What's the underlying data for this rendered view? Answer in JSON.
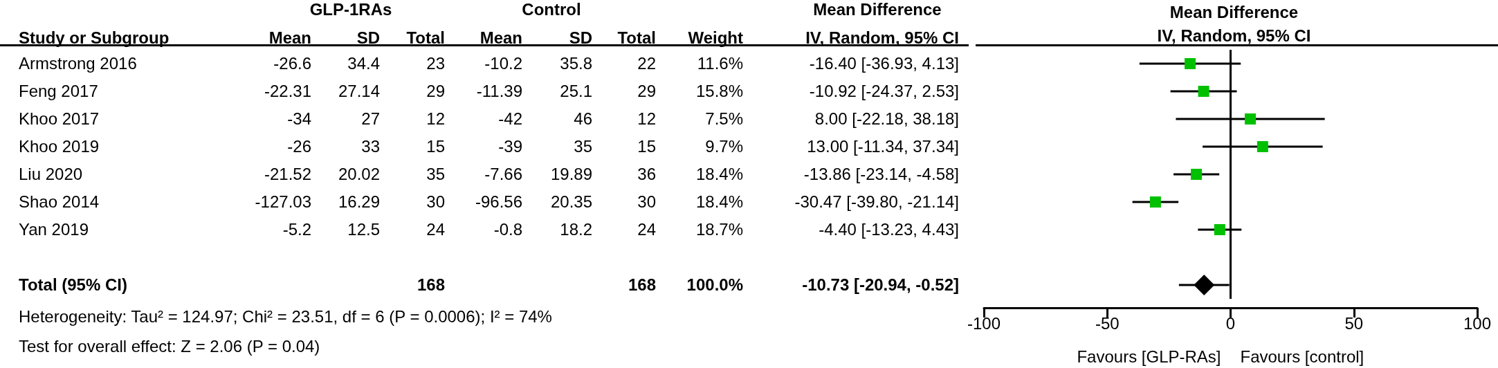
{
  "chart_data": [
    {
      "type": "other",
      "categories": [
        "Study or Subgroup",
        "Mean",
        "SD",
        "Total",
        "Mean",
        "SD",
        "Total",
        "Weight",
        "IV, Random, 95% CI"
      ],
      "cell_labels": [
        [
          "Armstrong 2016",
          "-26.6",
          "34.4",
          "23",
          "-10.2",
          "35.8",
          "22",
          "11.6%",
          "-16.40 [-36.93, 4.13]"
        ],
        [
          "Feng 2017",
          "-22.31",
          "27.14",
          "29",
          "-11.39",
          "25.1",
          "29",
          "15.8%",
          "-10.92 [-24.37, 2.53]"
        ],
        [
          "Khoo 2017",
          "-34",
          "27",
          "12",
          "-42",
          "46",
          "12",
          "7.5%",
          "8.00 [-22.18, 38.18]"
        ],
        [
          "Khoo 2019",
          "-26",
          "33",
          "15",
          "-39",
          "35",
          "15",
          "9.7%",
          "13.00 [-11.34, 37.34]"
        ],
        [
          "Liu 2020",
          "-21.52",
          "20.02",
          "35",
          "-7.66",
          "19.89",
          "36",
          "18.4%",
          "-13.86 [-23.14, -4.58]"
        ],
        [
          "Shao 2014",
          "-127.03",
          "16.29",
          "30",
          "-96.56",
          "20.35",
          "30",
          "18.4%",
          "-30.47 [-39.80, -21.14]"
        ],
        [
          "Yan 2019",
          "-5.2",
          "12.5",
          "24",
          "-0.8",
          "18.2",
          "24",
          "18.7%",
          "-4.40 [-13.23, 4.43]"
        ],
        [
          null,
          null,
          null,
          null,
          null,
          null,
          null,
          null,
          null
        ],
        [
          "Total (95% CI)",
          null,
          null,
          "168",
          null,
          null,
          "168",
          "100.0%",
          "-10.73 [-20.94, -0.52]"
        ]
      ],
      "annotations": [
        "GLP-1RAs",
        "Control",
        "Mean Difference",
        "Heterogeneity: Tau² = 124.97; Chi² = 23.51, df = 6 (P = 0.0006); I² = 74%",
        "Test for overall effect: Z = 2.06 (P = 0.04)"
      ]
    },
    {
      "type": "scatter",
      "title": "Mean Difference",
      "subtitle": "IV, Random, 95% CI",
      "orientation": "horizontal",
      "categories": [
        null,
        null,
        null,
        null,
        null,
        null,
        null,
        null,
        null
      ],
      "xlim": [
        -100,
        100
      ],
      "xticks": [
        -100,
        -50,
        0,
        50,
        100
      ],
      "tick_labels": "x",
      "series": [
        {
          "color": "#00c000",
          "marker": "square",
          "values": [
            -16.4,
            -10.92,
            8.0,
            13.0,
            -13.86,
            -30.47,
            -4.4,
            null,
            null
          ],
          "errors": [
            [
              -36.93,
              4.13
            ],
            [
              -24.37,
              2.53
            ],
            [
              -22.18,
              38.18
            ],
            [
              -11.34,
              37.34
            ],
            [
              -23.14,
              -4.58
            ],
            [
              -39.8,
              -21.14
            ],
            [
              -13.23,
              4.43
            ],
            null,
            null
          ]
        },
        {
          "color": "#000000",
          "marker": "diamond",
          "values": [
            null,
            null,
            null,
            null,
            null,
            null,
            null,
            null,
            -10.73
          ],
          "errors": [
            null,
            null,
            null,
            null,
            null,
            null,
            null,
            null,
            [
              -20.94,
              -0.52
            ]
          ]
        }
      ],
      "ref_lines": [
        {
          "axis": "x",
          "value": 0,
          "color": "#000000"
        }
      ],
      "annotations": [
        "Favours [GLP-RAs]",
        "Favours [control]"
      ]
    }
  ]
}
